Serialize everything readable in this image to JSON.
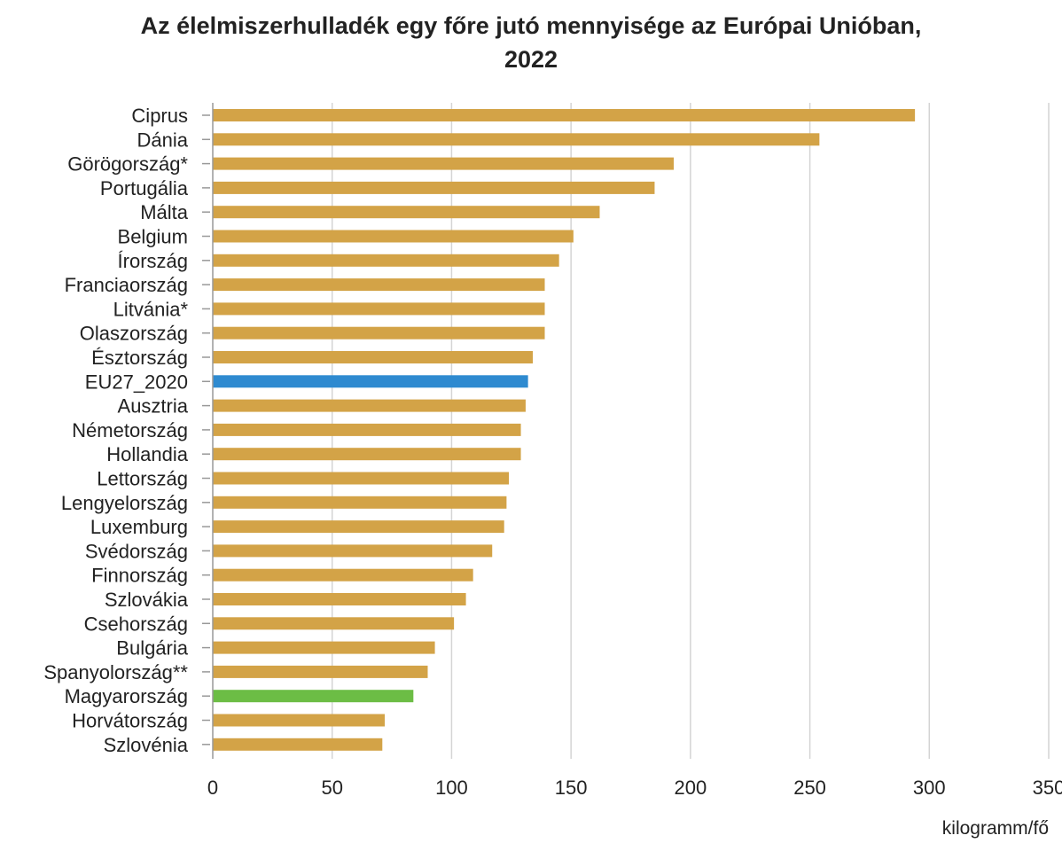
{
  "chart_data": {
    "type": "bar",
    "orientation": "horizontal",
    "title_lines": [
      "Az élelmiszerhulladék egy főre jutó mennyisége az Európai Unióban,",
      "2022"
    ],
    "xlabel": "kilogramm/fő",
    "ylabel": "",
    "xlim": [
      0,
      350
    ],
    "xticks": [
      "0",
      "50",
      "100",
      "150",
      "200",
      "250",
      "300",
      "350"
    ],
    "grid": true,
    "categories": [
      "Ciprus",
      "Dánia",
      "Görögország*",
      "Portugália",
      "Málta",
      "Belgium",
      "Írország",
      "Franciaország",
      "Litvánia*",
      "Olaszország",
      "Észtország",
      "EU27_2020",
      "Ausztria",
      "Németország",
      "Hollandia",
      "Lettország",
      "Lengyelország",
      "Luxemburg",
      "Svédország",
      "Finnország",
      "Szlovákia",
      "Csehország",
      "Bulgária",
      "Spanyolország**",
      "Magyarország",
      "Horvátország",
      "Szlovénia"
    ],
    "values": [
      294,
      254,
      193,
      185,
      162,
      151,
      145,
      139,
      139,
      139,
      134,
      132,
      131,
      129,
      129,
      124,
      123,
      122,
      117,
      109,
      106,
      101,
      93,
      90,
      84,
      72,
      71
    ],
    "colors": {
      "default": "#d3a347",
      "eu": "#2e8ad0",
      "highlight": "#6cbd45",
      "grid": "#d4d4d4",
      "axis": "#999999"
    },
    "special": {
      "EU27_2020": "eu",
      "Magyarország": "highlight"
    }
  }
}
